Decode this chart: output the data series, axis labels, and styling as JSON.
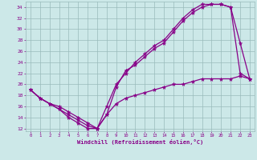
{
  "background_color": "#cce8e8",
  "line_color": "#880088",
  "grid_color": "#99bbbb",
  "xlabel": "Windchill (Refroidissement éolien,°C)",
  "xlabel_color": "#880088",
  "tick_color": "#880088",
  "xlim": [
    -0.5,
    23.5
  ],
  "ylim": [
    11.5,
    35.0
  ],
  "yticks": [
    12,
    14,
    16,
    18,
    20,
    22,
    24,
    26,
    28,
    30,
    32,
    34
  ],
  "xticks": [
    0,
    1,
    2,
    3,
    4,
    5,
    6,
    7,
    8,
    9,
    10,
    11,
    12,
    13,
    14,
    15,
    16,
    17,
    18,
    19,
    20,
    21,
    22,
    23
  ],
  "series1_x": [
    0,
    1,
    2,
    3,
    4,
    5,
    6,
    7,
    8,
    9,
    10,
    11,
    12,
    13,
    14,
    15,
    16,
    17,
    18,
    19,
    20,
    21,
    22,
    23
  ],
  "series1_y": [
    19.0,
    17.5,
    16.5,
    15.5,
    14.5,
    13.5,
    12.5,
    12.0,
    14.5,
    19.5,
    22.5,
    23.5,
    25.0,
    26.5,
    27.5,
    29.5,
    31.5,
    33.0,
    34.0,
    34.5,
    34.5,
    34.0,
    22.0,
    21.0
  ],
  "series2_x": [
    0,
    1,
    2,
    3,
    4,
    5,
    6,
    7,
    8,
    9,
    10,
    11,
    12,
    13,
    14,
    15,
    16,
    17,
    18,
    19,
    20,
    21,
    22,
    23
  ],
  "series2_y": [
    19.0,
    17.5,
    16.5,
    16.0,
    15.0,
    14.0,
    13.0,
    12.0,
    16.0,
    20.0,
    22.0,
    24.0,
    25.5,
    27.0,
    28.0,
    30.0,
    32.0,
    33.5,
    34.5,
    34.5,
    34.5,
    34.0,
    27.5,
    21.0
  ],
  "series3_x": [
    0,
    1,
    2,
    3,
    4,
    5,
    6,
    7,
    8,
    9,
    10,
    11,
    12,
    13,
    14,
    15,
    16,
    17,
    18,
    19,
    20,
    21,
    22,
    23
  ],
  "series3_y": [
    19.0,
    17.5,
    16.5,
    15.5,
    14.0,
    13.0,
    12.0,
    12.0,
    14.5,
    16.5,
    17.5,
    18.0,
    18.5,
    19.0,
    19.5,
    20.0,
    20.0,
    20.5,
    21.0,
    21.0,
    21.0,
    21.0,
    21.5,
    21.0
  ]
}
